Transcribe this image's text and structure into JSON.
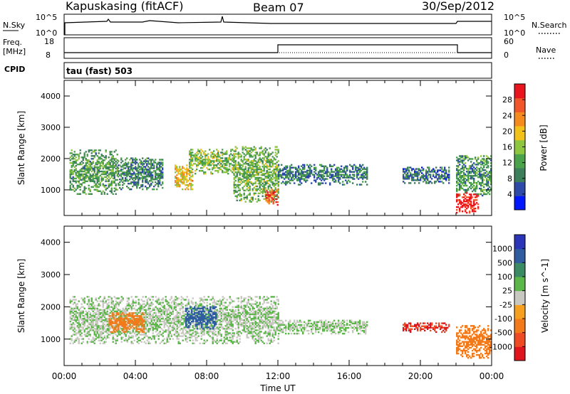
{
  "header": {
    "station": "Kapuskasing (fitACF)",
    "beam": "Beam 07",
    "date": "30/Sep/2012"
  },
  "top_panels": {
    "nsky_label": "N.Sky",
    "nsky_ticks": [
      "10^5",
      "10^0"
    ],
    "nsearch_label": "N.Search",
    "nsearch_ticks": [
      "10^5",
      "10^0"
    ],
    "freq_label": "Freq.",
    "freq_unit": "[MHz]",
    "freq_ticks": [
      "18",
      "8"
    ],
    "nave_label": "Nave",
    "nave_ticks": [
      "60",
      "0"
    ],
    "cpid_label": "CPID",
    "cpid_value": "tau (fast) 503"
  },
  "colors": {
    "power_scale": [
      "#0018ff",
      "#2f49a8",
      "#3d7f5a",
      "#4aa24a",
      "#8ec63f",
      "#f2c21b",
      "#f58a1f",
      "#f1562a",
      "#e8161c"
    ],
    "velocity_scale": [
      "#2b35b8",
      "#2f5da0",
      "#3a8a63",
      "#5bb848",
      "#c8c8c0",
      "#f5a020",
      "#f27a1a",
      "#ee4a24",
      "#e0141c"
    ]
  },
  "chart_data": [
    {
      "type": "heatmap",
      "title": "",
      "xlabel": "Time UT",
      "ylabel": "Slant Range [km]",
      "xlim": [
        "00:00",
        "24:00"
      ],
      "x_ticks": [
        "00:00",
        "04:00",
        "08:00",
        "12:00",
        "16:00",
        "20:00",
        "00:00"
      ],
      "ylim": [
        180,
        4500
      ],
      "y_ticks": [
        1000,
        2000,
        3000,
        4000
      ],
      "colorbar": {
        "label": "Power [dB]",
        "ticks": [
          "28",
          "24",
          "20",
          "16",
          "12",
          "8",
          "4"
        ],
        "range": [
          0,
          30
        ]
      },
      "regions": [
        {
          "t0": 0.3,
          "t1": 3.0,
          "r0": 850,
          "r1": 2250,
          "level": 11
        },
        {
          "t0": 3.0,
          "t1": 5.5,
          "r0": 1000,
          "r1": 2000,
          "level": 9
        },
        {
          "t0": 6.2,
          "t1": 7.2,
          "r0": 1000,
          "r1": 1800,
          "level": 19
        },
        {
          "t0": 7.0,
          "t1": 9.5,
          "r0": 1500,
          "r1": 2300,
          "level": 14
        },
        {
          "t0": 9.5,
          "t1": 12.0,
          "r0": 600,
          "r1": 2400,
          "level": 13
        },
        {
          "t0": 11.3,
          "t1": 12.0,
          "r0": 500,
          "r1": 1000,
          "level": 24
        },
        {
          "t0": 12.0,
          "t1": 17.0,
          "r0": 1150,
          "r1": 1800,
          "level": 8
        },
        {
          "t0": 19.0,
          "t1": 21.6,
          "r0": 1200,
          "r1": 1700,
          "level": 7
        },
        {
          "t0": 22.0,
          "t1": 24.0,
          "r0": 800,
          "r1": 2100,
          "level": 10
        },
        {
          "t0": 22.0,
          "t1": 23.2,
          "r0": 250,
          "r1": 900,
          "level": 28
        }
      ]
    },
    {
      "type": "heatmap",
      "title": "",
      "xlabel": "Time UT",
      "ylabel": "Slant Range [km]",
      "xlim": [
        "00:00",
        "24:00"
      ],
      "x_ticks": [
        "00:00",
        "04:00",
        "08:00",
        "12:00",
        "16:00",
        "20:00",
        "00:00"
      ],
      "ylim": [
        180,
        4500
      ],
      "y_ticks": [
        1000,
        2000,
        3000,
        4000
      ],
      "colorbar": {
        "label": "Velocity [m s^-1]",
        "ticks": [
          "1000",
          "500",
          "100",
          "25",
          "-25",
          "-100",
          "-500",
          "-1000"
        ],
        "range": [
          -1000,
          1000
        ]
      },
      "regions": [
        {
          "t0": 0.3,
          "t1": 12.0,
          "r0": 850,
          "r1": 2300,
          "level": 0
        },
        {
          "t0": 2.5,
          "t1": 4.5,
          "r0": 1200,
          "r1": 1800,
          "level": -300
        },
        {
          "t0": 6.8,
          "t1": 8.5,
          "r0": 1300,
          "r1": 2000,
          "level": 200
        },
        {
          "t0": 12.0,
          "t1": 17.0,
          "r0": 1150,
          "r1": 1600,
          "level": 0
        },
        {
          "t0": 19.0,
          "t1": 21.6,
          "r0": 1200,
          "r1": 1500,
          "level": -800
        },
        {
          "t0": 22.0,
          "t1": 24.0,
          "r0": 400,
          "r1": 1400,
          "level": -200
        }
      ]
    }
  ]
}
